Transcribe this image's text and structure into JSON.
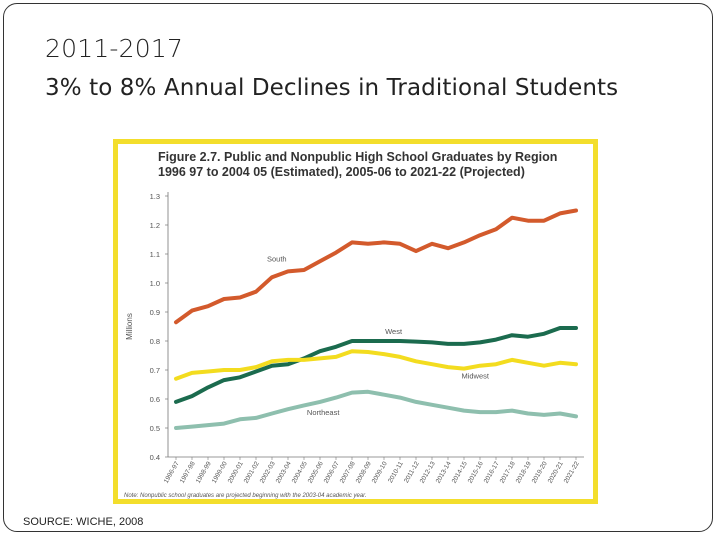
{
  "slide": {
    "title": "2011-2017",
    "subtitle": "3% to 8% Annual Declines in Traditional Students",
    "source": "SOURCE: WICHE, 2008"
  },
  "figure": {
    "title_line1": "Figure 2.7.  Public and Nonpublic High School Graduates by Region",
    "title_line2": "1996 97 to 2004 05 (Estimated), 2005-06 to 2021-22 (Projected)",
    "note": "Note: Nonpublic school graduates are projected beginning with the 2003-04 academic year.",
    "border_color": "#f3de2c"
  },
  "chart_data": {
    "type": "line",
    "ylabel": "Millions",
    "xlabel": "",
    "ylim": [
      0.4,
      1.3
    ],
    "yticks": [
      "0.4",
      "0.5",
      "0.6",
      "0.7",
      "0.8",
      "0.9",
      "1.0",
      "1.1",
      "1.2",
      "1.3"
    ],
    "grid": false,
    "x": [
      "1996-97",
      "1997-98",
      "1998-99",
      "1999-00",
      "2000-01",
      "2001-02",
      "2002-03",
      "2003-04",
      "2004-05",
      "2005-06",
      "2006-07",
      "2007-08",
      "2008-09",
      "2009-10",
      "2010-11",
      "2011-12",
      "2012-13",
      "2013-14",
      "2014-15",
      "2015-16",
      "2016-17",
      "2017-18",
      "2018-19",
      "2019-20",
      "2020-21",
      "2021-22"
    ],
    "series": [
      {
        "name": "South",
        "color": "#d35a2c",
        "values": [
          0.865,
          0.905,
          0.92,
          0.945,
          0.95,
          0.97,
          1.02,
          1.04,
          1.045,
          1.075,
          1.105,
          1.14,
          1.135,
          1.14,
          1.135,
          1.11,
          1.135,
          1.12,
          1.14,
          1.165,
          1.185,
          1.225,
          1.215,
          1.215,
          1.24,
          1.25
        ]
      },
      {
        "name": "West",
        "color": "#1b6b4e",
        "values": [
          0.59,
          0.61,
          0.64,
          0.665,
          0.675,
          0.695,
          0.715,
          0.72,
          0.74,
          0.765,
          0.78,
          0.8,
          0.8,
          0.8,
          0.8,
          0.798,
          0.795,
          0.79,
          0.79,
          0.795,
          0.805,
          0.82,
          0.815,
          0.825,
          0.845,
          0.845
        ]
      },
      {
        "name": "Midwest",
        "color": "#f3dc1f",
        "values": [
          0.67,
          0.69,
          0.695,
          0.7,
          0.7,
          0.71,
          0.73,
          0.735,
          0.735,
          0.74,
          0.745,
          0.765,
          0.762,
          0.755,
          0.745,
          0.73,
          0.72,
          0.71,
          0.705,
          0.715,
          0.72,
          0.735,
          0.725,
          0.715,
          0.725,
          0.72
        ]
      },
      {
        "name": "Northeast",
        "color": "#8ebfae",
        "values": [
          0.5,
          0.505,
          0.51,
          0.515,
          0.53,
          0.535,
          0.55,
          0.565,
          0.578,
          0.59,
          0.605,
          0.622,
          0.625,
          0.615,
          0.605,
          0.59,
          0.58,
          0.57,
          0.56,
          0.555,
          0.555,
          0.56,
          0.55,
          0.545,
          0.55,
          0.54
        ]
      }
    ]
  }
}
